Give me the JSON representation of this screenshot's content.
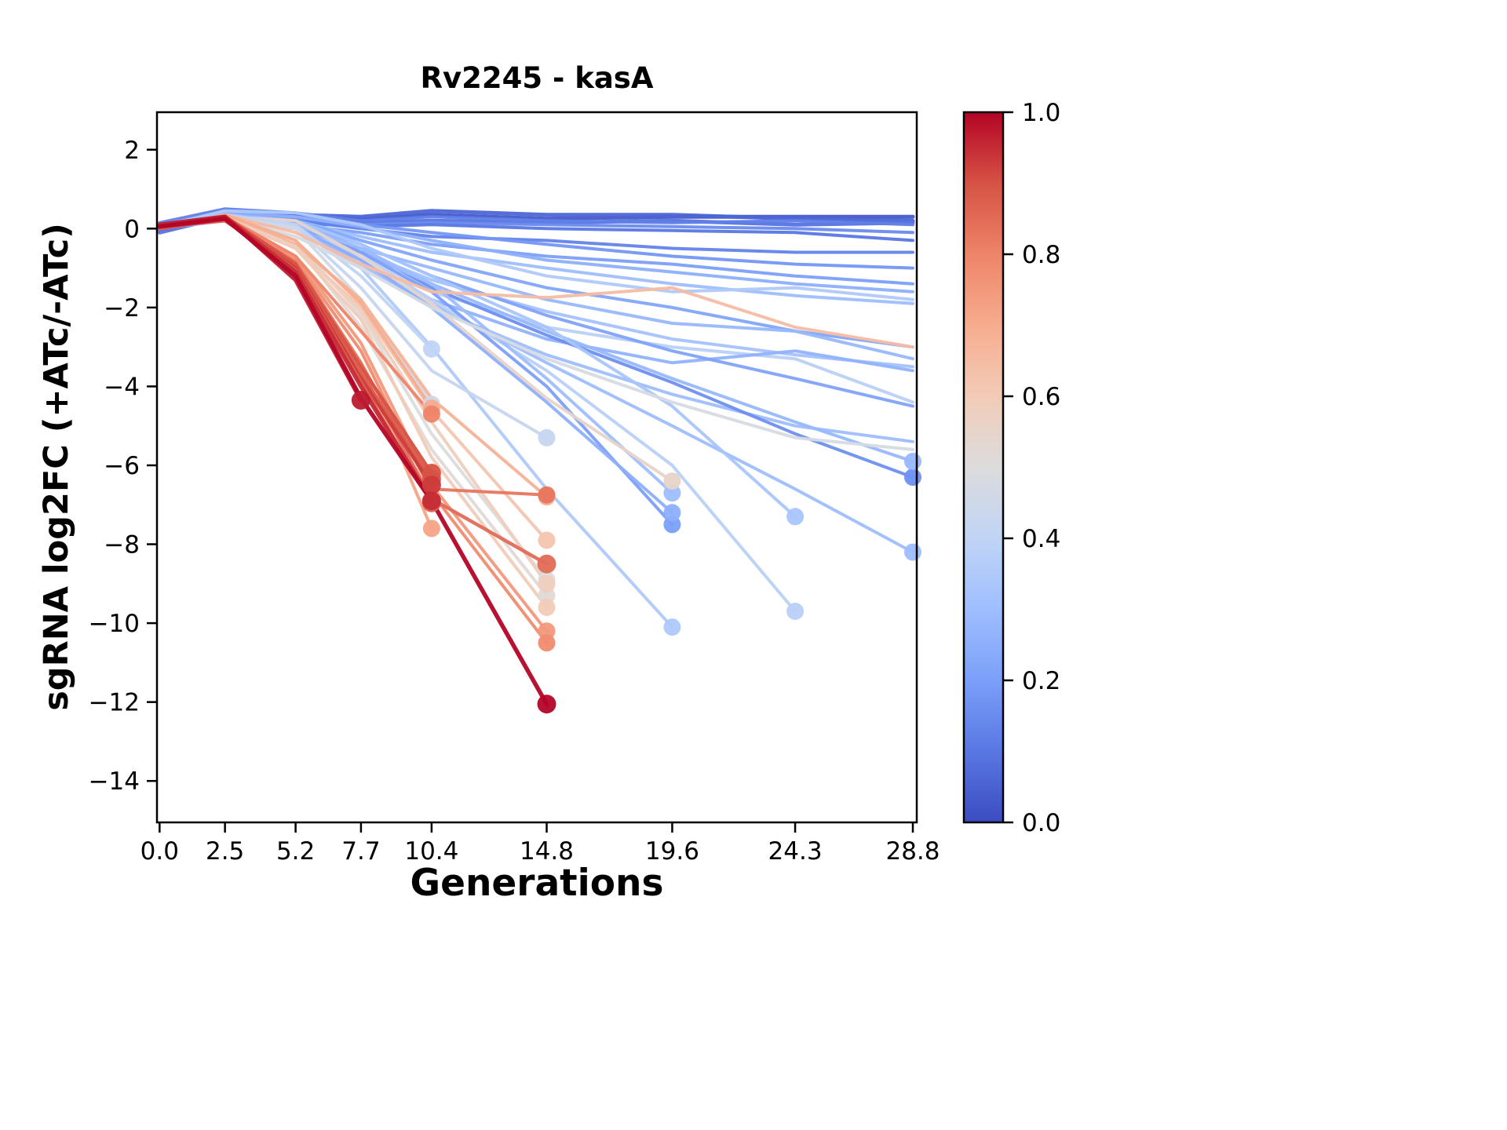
{
  "colors": {
    "background": "#ffffff",
    "axes_color": "#000000"
  },
  "chart_data": {
    "type": "line",
    "title": "Rv2245 - kasA",
    "xlabel": "Generations",
    "ylabel": "sgRNA log2FC (+ATc/-ATc)",
    "grid": false,
    "xlim": [
      -0.1,
      28.95
    ],
    "ylim": [
      -15.05,
      2.95
    ],
    "timepoints": [
      0,
      2.5,
      5.2,
      7.7,
      10.4,
      14.8,
      19.6,
      24.3,
      28.8
    ],
    "x_tick_labels": [
      "0.0",
      "2.5",
      "5.2",
      "7.7",
      "10.4",
      "14.8",
      "19.6",
      "24.3",
      "28.8"
    ],
    "y_ticks": [
      2,
      0,
      -2,
      -4,
      -6,
      -8,
      -10,
      -12,
      -14
    ],
    "y_tick_labels": [
      "2",
      "0",
      "−2",
      "−4",
      "−6",
      "−8",
      "−10",
      "−12",
      "−14"
    ],
    "colormap": {
      "name": "coolwarm",
      "anchors": [
        "#3b4cc0",
        "#5977e3",
        "#7b9ff9",
        "#9ebeff",
        "#c0d4f5",
        "#dcdcdc",
        "#f2cbb7",
        "#f7ac8e",
        "#ee8468",
        "#d65244",
        "#b40426"
      ]
    },
    "colorbar": {
      "ticks": [
        1.0,
        0.8,
        0.6,
        0.4,
        0.2,
        0.0
      ],
      "tick_labels": [
        "1.0",
        "0.8",
        "0.6",
        "0.4",
        "0.2",
        "0.0"
      ]
    },
    "series": [
      {
        "c": 0.03,
        "lw": 5,
        "marker": false,
        "y": [
          0.1,
          0.35,
          0.3,
          0.25,
          0.35,
          0.25,
          0.3,
          0.3,
          0.3
        ]
      },
      {
        "c": 0.06,
        "lw": 5,
        "marker": false,
        "y": [
          0.0,
          0.4,
          0.35,
          0.3,
          0.45,
          0.35,
          0.35,
          0.25,
          0.2
        ]
      },
      {
        "c": 0.09,
        "lw": 5,
        "marker": false,
        "y": [
          -0.1,
          0.3,
          0.2,
          0.15,
          0.2,
          0.15,
          0.2,
          0.1,
          0.15
        ]
      },
      {
        "c": 0.12,
        "lw": 4,
        "marker": false,
        "y": [
          0.15,
          0.5,
          0.4,
          0.2,
          0.3,
          0.2,
          0.15,
          0.2,
          0.1
        ]
      },
      {
        "c": 0.15,
        "lw": 4,
        "marker": false,
        "y": [
          0.05,
          0.3,
          0.25,
          0.1,
          0.15,
          0.1,
          0.05,
          0.0,
          -0.1
        ]
      },
      {
        "c": 0.1,
        "lw": 4,
        "marker": false,
        "y": [
          -0.05,
          0.25,
          0.15,
          0.05,
          0.1,
          0.0,
          -0.05,
          -0.1,
          -0.3
        ]
      },
      {
        "c": 0.13,
        "lw": 4,
        "marker": false,
        "y": [
          0.0,
          0.3,
          0.2,
          0.0,
          -0.2,
          -0.3,
          -0.5,
          -0.6,
          -0.6
        ]
      },
      {
        "c": 0.18,
        "lw": 4,
        "marker": false,
        "y": [
          0.05,
          0.35,
          0.3,
          0.1,
          -0.1,
          -0.4,
          -0.7,
          -0.9,
          -1.0
        ]
      },
      {
        "c": 0.2,
        "lw": 4,
        "marker": false,
        "y": [
          0.0,
          0.3,
          0.1,
          -0.1,
          -0.4,
          -0.7,
          -0.9,
          -1.2,
          -1.4
        ]
      },
      {
        "c": 0.25,
        "lw": 4,
        "marker": false,
        "y": [
          0.1,
          0.4,
          0.3,
          0.05,
          -0.3,
          -0.8,
          -1.1,
          -1.4,
          -1.6
        ]
      },
      {
        "c": 0.3,
        "lw": 4,
        "marker": false,
        "y": [
          0.0,
          0.35,
          0.2,
          -0.2,
          -0.6,
          -1.0,
          -1.4,
          -1.7,
          -1.9
        ]
      },
      {
        "c": 0.35,
        "lw": 4,
        "marker": false,
        "y": [
          0.05,
          0.45,
          0.4,
          0.1,
          -0.5,
          -1.2,
          -1.6,
          -1.5,
          -1.8
        ]
      },
      {
        "c": 0.22,
        "lw": 4,
        "marker": false,
        "y": [
          0.0,
          0.3,
          0.2,
          -0.3,
          -0.8,
          -1.5,
          -2.0,
          -2.6,
          -3.0
        ]
      },
      {
        "c": 0.28,
        "lw": 4,
        "marker": false,
        "y": [
          0.0,
          0.25,
          0.1,
          -0.5,
          -1.0,
          -1.8,
          -2.4,
          -2.6,
          -3.3
        ]
      },
      {
        "c": 0.32,
        "lw": 4,
        "marker": false,
        "y": [
          0.05,
          0.3,
          0.0,
          -0.6,
          -1.3,
          -2.1,
          -2.8,
          -3.2,
          -3.5
        ]
      },
      {
        "c": 0.38,
        "lw": 4,
        "marker": false,
        "y": [
          0.0,
          0.3,
          0.1,
          -0.7,
          -1.6,
          -2.5,
          -3.0,
          -3.3,
          -4.4
        ]
      },
      {
        "c": 0.26,
        "lw": 4,
        "marker": false,
        "y": [
          0.0,
          0.2,
          0.0,
          -0.8,
          -1.8,
          -2.8,
          -3.4,
          -3.1,
          -3.6
        ]
      },
      {
        "c": 0.21,
        "lw": 4,
        "marker": false,
        "y": [
          0.0,
          0.3,
          0.15,
          -0.4,
          -1.2,
          -2.2,
          -3.1,
          -3.8,
          -4.5
        ]
      },
      {
        "c": 0.3,
        "lw": 4,
        "marker": false,
        "y": [
          0.0,
          0.25,
          0.0,
          -0.9,
          -2.0,
          -3.2,
          -4.2,
          -5.0,
          -5.4
        ]
      },
      {
        "c": 0.16,
        "lw": 4,
        "marker": true,
        "y": [
          0.0,
          0.3,
          0.1,
          -0.5,
          -1.5,
          -2.7,
          -3.9,
          -5.2,
          -6.3
        ]
      },
      {
        "c": 0.28,
        "lw": 4,
        "marker": true,
        "y": [
          0.0,
          0.35,
          0.2,
          -0.6,
          -1.4,
          -2.6,
          -3.8,
          -4.9,
          -5.9
        ]
      },
      {
        "c": 0.3,
        "lw": 4,
        "marker": true,
        "y": [
          0.0,
          0.3,
          0.1,
          -0.8,
          -1.9,
          -3.4,
          -5.0,
          -6.6,
          -8.2
        ]
      },
      {
        "c": 0.35,
        "lw": 4,
        "marker": true,
        "y": [
          0.0,
          0.3,
          0.0,
          -1.0,
          -3.0,
          -6.6,
          -10.1
        ]
      },
      {
        "c": 0.38,
        "lw": 4,
        "marker": true,
        "y": [
          0.0,
          0.35,
          0.1,
          -0.7,
          -1.8,
          -3.6,
          -6.0,
          -9.7
        ]
      },
      {
        "c": 0.33,
        "lw": 4,
        "marker": true,
        "y": [
          0.0,
          0.3,
          0.2,
          -0.4,
          -1.2,
          -2.5,
          -4.5,
          -7.3
        ]
      },
      {
        "c": 0.2,
        "lw": 4,
        "marker": true,
        "y": [
          0.0,
          0.3,
          0.1,
          -0.6,
          -1.6,
          -4.0,
          -7.5
        ]
      },
      {
        "c": 0.25,
        "lw": 4,
        "marker": true,
        "y": [
          0.0,
          0.25,
          0.05,
          -0.8,
          -2.0,
          -4.4,
          -7.2
        ]
      },
      {
        "c": 0.3,
        "lw": 4,
        "marker": true,
        "y": [
          0.0,
          0.3,
          0.1,
          -0.5,
          -1.4,
          -3.8,
          -6.7
        ]
      },
      {
        "c": 0.55,
        "lw": 4,
        "marker": true,
        "y": [
          0.0,
          0.3,
          0.2,
          -0.7,
          -1.9,
          -4.3,
          -6.4
        ]
      },
      {
        "c": 0.4,
        "lw": 4,
        "marker": true,
        "y": [
          0.0,
          0.35,
          0.1,
          -1.2,
          -3.05
        ]
      },
      {
        "c": 0.42,
        "lw": 4,
        "marker": true,
        "y": [
          0.0,
          0.3,
          0.05,
          -1.5,
          -3.6,
          -5.3
        ]
      },
      {
        "c": 0.46,
        "lw": 4,
        "marker": true,
        "y": [
          0.0,
          0.3,
          0.0,
          -1.8,
          -4.45
        ]
      },
      {
        "c": 0.5,
        "lw": 4,
        "marker": true,
        "y": [
          0.0,
          0.3,
          -0.3,
          -2.2,
          -5.2,
          -8.9
        ]
      },
      {
        "c": 0.52,
        "lw": 4,
        "marker": true,
        "y": [
          0.0,
          0.25,
          -0.4,
          -2.5,
          -5.6,
          -9.3
        ]
      },
      {
        "c": 0.48,
        "lw": 4,
        "marker": false,
        "y": [
          0.0,
          0.3,
          -0.2,
          -1.0,
          -2.0,
          -3.3,
          -4.4,
          -5.3,
          -5.6
        ]
      },
      {
        "c": 0.65,
        "lw": 4,
        "marker": false,
        "y": [
          0.0,
          0.35,
          -0.1,
          -0.9,
          -1.6,
          -1.75,
          -1.5,
          -2.5,
          -3.0
        ]
      },
      {
        "c": 0.68,
        "lw": 4,
        "marker": true,
        "y": [
          0.0,
          0.3,
          -0.4,
          -1.8,
          -4.3,
          -6.8
        ]
      },
      {
        "c": 0.62,
        "lw": 4,
        "marker": true,
        "y": [
          0.0,
          0.25,
          -0.5,
          -2.0,
          -4.6,
          -7.9
        ]
      },
      {
        "c": 0.6,
        "lw": 4,
        "marker": true,
        "y": [
          0.0,
          0.3,
          -0.5,
          -2.3,
          -5.8,
          -9.6
        ]
      },
      {
        "c": 0.7,
        "lw": 4,
        "marker": true,
        "y": [
          0.0,
          0.35,
          -0.3,
          -1.9,
          -4.55
        ]
      },
      {
        "c": 0.75,
        "lw": 4,
        "marker": true,
        "y": [
          0.0,
          0.3,
          -0.7,
          -2.9,
          -6.5,
          -10.2
        ]
      },
      {
        "c": 0.78,
        "lw": 4,
        "marker": true,
        "y": [
          0.0,
          0.25,
          -0.8,
          -3.1,
          -6.7,
          -10.5
        ]
      },
      {
        "c": 0.72,
        "lw": 4,
        "marker": true,
        "y": [
          0.0,
          0.3,
          -0.9,
          -3.4,
          -7.6
        ]
      },
      {
        "c": 0.58,
        "lw": 4,
        "marker": true,
        "y": [
          0.0,
          0.28,
          -0.45,
          -2.1,
          -4.9,
          -9.0
        ]
      },
      {
        "c": 0.83,
        "lw": 4,
        "marker": true,
        "y": [
          0.0,
          0.25,
          -0.85,
          -3.4,
          -6.6,
          -6.75
        ]
      },
      {
        "c": 0.8,
        "lw": 4,
        "marker": true,
        "y": [
          0.0,
          0.3,
          -0.7,
          -2.6,
          -4.7
        ]
      },
      {
        "c": 0.85,
        "lw": 4.5,
        "marker": true,
        "y": [
          0.0,
          0.25,
          -0.9,
          -3.6,
          -6.85,
          -8.5
        ]
      },
      {
        "c": 0.88,
        "lw": 4.5,
        "marker": true,
        "y": [
          0.05,
          0.2,
          -1.0,
          -3.7,
          -6.35
        ]
      },
      {
        "c": 0.9,
        "lw": 4.5,
        "marker": true,
        "y": [
          0.0,
          0.3,
          -0.9,
          -3.5,
          -6.2
        ]
      },
      {
        "c": 0.93,
        "lw": 4.5,
        "marker": true,
        "y": [
          0.0,
          0.25,
          -1.0,
          -3.8,
          -6.5
        ]
      },
      {
        "c": 0.87,
        "lw": 4.5,
        "marker": true,
        "y": [
          0.0,
          0.3,
          -1.05,
          -3.9,
          -6.95
        ]
      },
      {
        "c": 0.95,
        "lw": 5.5,
        "marker": true,
        "y": [
          0.05,
          0.3,
          -1.1,
          -4.0,
          -6.9
        ]
      },
      {
        "c": 0.97,
        "lw": 5.5,
        "marker": true,
        "y": [
          0.1,
          0.3,
          -1.3,
          -4.35
        ]
      },
      {
        "c": 1.0,
        "lw": 5.5,
        "marker": true,
        "y": [
          0.05,
          0.25,
          -1.2,
          -4.3,
          -6.9,
          -12.05
        ]
      }
    ]
  }
}
